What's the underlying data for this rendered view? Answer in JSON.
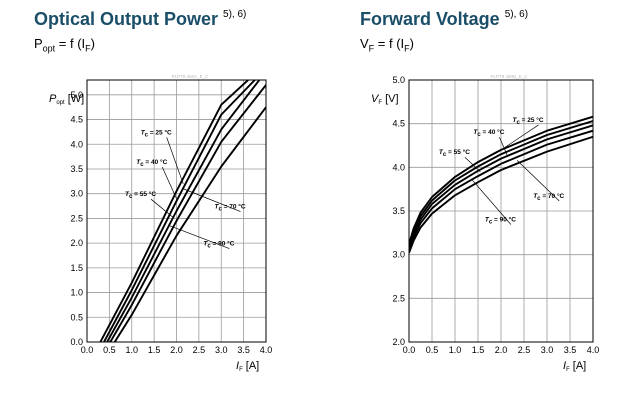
{
  "page": {
    "background": "#ffffff",
    "title_color": "#1b4e68"
  },
  "charts": [
    {
      "title": "Optical Output Power",
      "title_note": "5), 6)",
      "subtitle": {
        "symbol": "P",
        "symbol_sub": "opt",
        "eq": " = f (I",
        "arg_sub": "F",
        "close": ")"
      },
      "code": "PLPT9 450A_E_C"
    },
    {
      "title": "Forward Voltage",
      "title_note": "5), 6)",
      "subtitle": {
        "symbol": "V",
        "symbol_sub": "F",
        "eq": " = f (I",
        "arg_sub": "F",
        "close": ")"
      },
      "code": "PLPT9 450D_E_C"
    }
  ],
  "chart_data": [
    {
      "type": "line",
      "title": "Optical Output Power",
      "ylabel": {
        "sym": "P",
        "sub": "opt",
        "unit": " [W]"
      },
      "xlabel": {
        "sym": "I",
        "sub": "F",
        "unit": " [A]"
      },
      "xlim": [
        0.0,
        4.0
      ],
      "ylim": [
        0.0,
        5.3
      ],
      "xticks": [
        "0.0",
        "0.5",
        "1.0",
        "1.5",
        "2.0",
        "2.5",
        "3.0",
        "3.5",
        "4.0"
      ],
      "yticks": [
        "0.0",
        "0.5",
        "1.0",
        "1.5",
        "2.0",
        "2.5",
        "3.0",
        "3.5",
        "4.0",
        "4.5",
        "5.0"
      ],
      "grid": true,
      "series": [
        {
          "name": "T_c = 25 °C",
          "temp": "25",
          "x": [
            0.3,
            1.0,
            2.0,
            3.0,
            3.6
          ],
          "y": [
            0.0,
            1.2,
            3.05,
            4.8,
            5.3
          ]
        },
        {
          "name": "T_c = 40 °C",
          "temp": "40",
          "x": [
            0.38,
            1.0,
            2.0,
            3.0,
            3.75
          ],
          "y": [
            0.0,
            1.05,
            2.85,
            4.6,
            5.3
          ]
        },
        {
          "name": "T_c = 55 °C",
          "temp": "55",
          "x": [
            0.45,
            1.0,
            2.0,
            3.0,
            3.85
          ],
          "y": [
            0.0,
            0.9,
            2.65,
            4.3,
            5.3
          ]
        },
        {
          "name": "T_c = 70 °C",
          "temp": "70",
          "x": [
            0.52,
            1.0,
            2.0,
            3.0,
            4.0
          ],
          "y": [
            0.0,
            0.75,
            2.45,
            4.05,
            5.2
          ]
        },
        {
          "name": "T_c = 90 °C",
          "temp": "90",
          "x": [
            0.62,
            1.0,
            2.0,
            3.0,
            4.0
          ],
          "y": [
            0.0,
            0.55,
            2.15,
            3.55,
            4.75
          ]
        }
      ],
      "labels": [
        {
          "temp": "25",
          "x": 1.2,
          "y": 4.2,
          "arrow_to": [
            2.15,
            3.2
          ]
        },
        {
          "temp": "40",
          "x": 1.1,
          "y": 3.6,
          "arrow_to": [
            2.0,
            2.9
          ]
        },
        {
          "temp": "55",
          "x": 0.85,
          "y": 2.95,
          "arrow_to": [
            1.95,
            2.5
          ]
        },
        {
          "temp": "70",
          "x": 2.85,
          "y": 2.7,
          "arrow_to": [
            2.15,
            3.1
          ]
        },
        {
          "temp": "90",
          "x": 2.6,
          "y": 1.95,
          "arrow_to": [
            1.85,
            2.35
          ]
        }
      ]
    },
    {
      "type": "line",
      "title": "Forward Voltage",
      "ylabel": {
        "sym": "V",
        "sub": "F",
        "unit": " [V]"
      },
      "xlabel": {
        "sym": "I",
        "sub": "F",
        "unit": " [A]"
      },
      "xlim": [
        0.0,
        4.0
      ],
      "ylim": [
        2.0,
        5.0
      ],
      "xticks": [
        "0.0",
        "0.5",
        "1.0",
        "1.5",
        "2.0",
        "2.5",
        "3.0",
        "3.5",
        "4.0"
      ],
      "yticks": [
        "2.0",
        "2.5",
        "3.0",
        "3.5",
        "4.0",
        "4.5",
        "5.0"
      ],
      "grid": true,
      "series": [
        {
          "name": "T_c = 25 °C",
          "temp": "25",
          "x": [
            0.0,
            0.1,
            0.25,
            0.5,
            1.0,
            1.5,
            2.0,
            3.0,
            4.0
          ],
          "y": [
            3.12,
            3.3,
            3.48,
            3.66,
            3.89,
            4.06,
            4.2,
            4.42,
            4.58
          ]
        },
        {
          "name": "T_c = 40 °C",
          "temp": "40",
          "x": [
            0.0,
            0.1,
            0.25,
            0.5,
            1.0,
            1.5,
            2.0,
            3.0,
            4.0
          ],
          "y": [
            3.1,
            3.27,
            3.44,
            3.62,
            3.85,
            4.01,
            4.15,
            4.37,
            4.53
          ]
        },
        {
          "name": "T_c = 55 °C",
          "temp": "55",
          "x": [
            0.0,
            0.1,
            0.25,
            0.5,
            1.0,
            1.5,
            2.0,
            3.0,
            4.0
          ],
          "y": [
            3.08,
            3.24,
            3.4,
            3.58,
            3.8,
            3.96,
            4.1,
            4.32,
            4.48
          ]
        },
        {
          "name": "T_c = 70 °C",
          "temp": "70",
          "x": [
            0.0,
            0.1,
            0.25,
            0.5,
            1.0,
            1.5,
            2.0,
            3.0,
            4.0
          ],
          "y": [
            3.05,
            3.2,
            3.36,
            3.53,
            3.75,
            3.9,
            4.04,
            4.26,
            4.42
          ]
        },
        {
          "name": "T_c = 90 °C",
          "temp": "90",
          "x": [
            0.0,
            0.1,
            0.25,
            0.5,
            1.0,
            1.5,
            2.0,
            3.0,
            4.0
          ],
          "y": [
            3.02,
            3.16,
            3.31,
            3.47,
            3.68,
            3.83,
            3.97,
            4.18,
            4.35
          ]
        }
      ],
      "labels": [
        {
          "temp": "25",
          "x": 2.25,
          "y": 4.52,
          "arrow_to": [
            1.95,
            4.18
          ]
        },
        {
          "temp": "40",
          "x": 1.4,
          "y": 4.38,
          "arrow_to": [
            2.15,
            4.12
          ]
        },
        {
          "temp": "55",
          "x": 0.65,
          "y": 4.15,
          "arrow_to": [
            1.55,
            3.95
          ]
        },
        {
          "temp": "70",
          "x": 2.7,
          "y": 3.65,
          "arrow_to": [
            2.35,
            4.08
          ]
        },
        {
          "temp": "90",
          "x": 1.65,
          "y": 3.38,
          "arrow_to": [
            1.35,
            3.87
          ]
        }
      ]
    }
  ]
}
